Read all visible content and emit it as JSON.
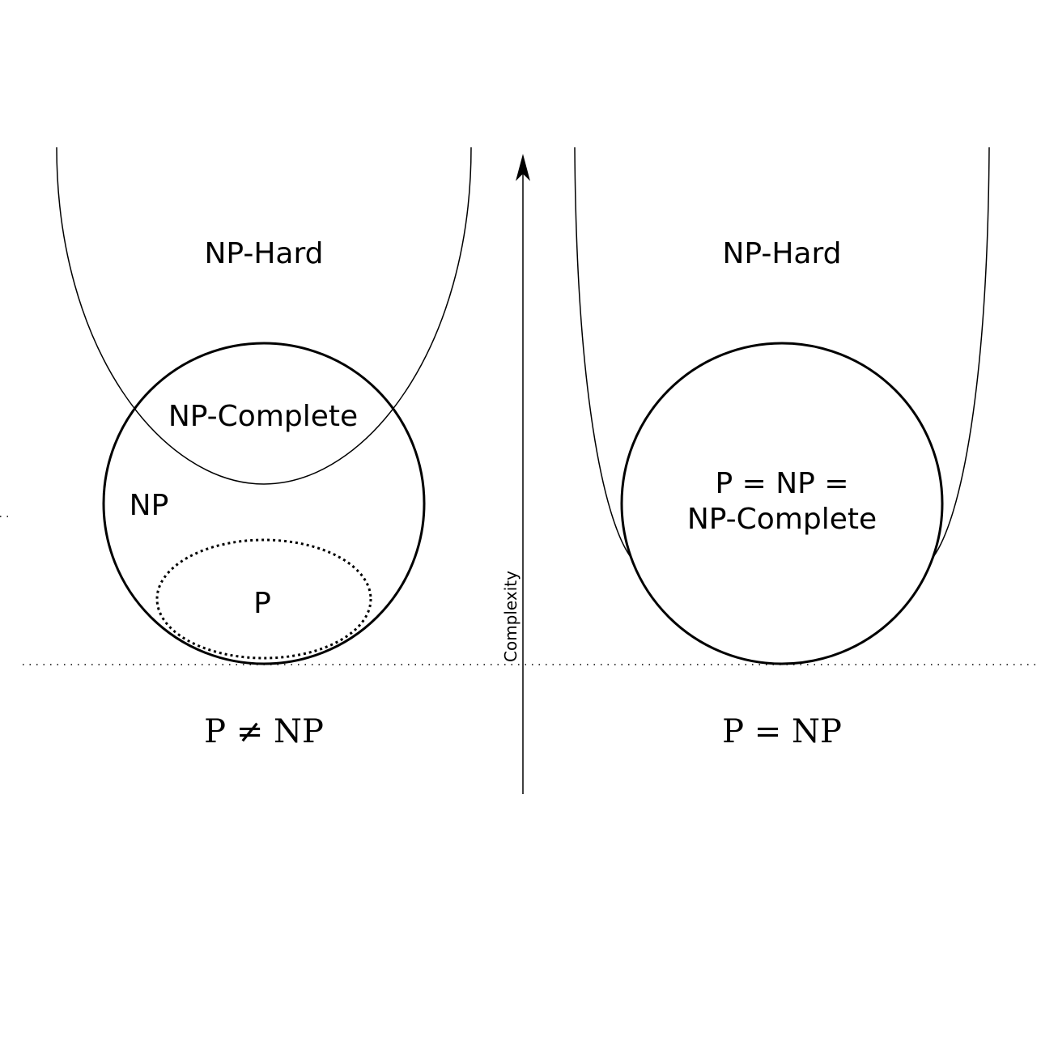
{
  "left_panel": {
    "np_hard": "NP-Hard",
    "np_complete": "NP-Complete",
    "np": "NP",
    "p": "P",
    "caption": "P ≠ NP"
  },
  "right_panel": {
    "np_hard": "NP-Hard",
    "merged_line1": "P = NP =",
    "merged_line2": "NP-Complete",
    "caption": "P = NP"
  },
  "axis": {
    "label": "Complexity"
  }
}
